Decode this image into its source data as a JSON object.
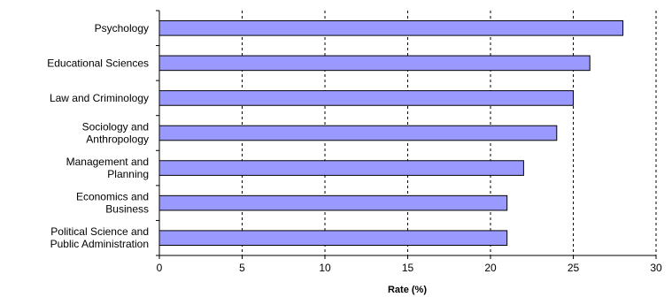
{
  "chart_data": {
    "type": "bar",
    "orientation": "horizontal",
    "title": "",
    "xlabel": "Rate (%)",
    "ylabel": "",
    "xlim": [
      0,
      30
    ],
    "xticks": [
      0,
      5,
      10,
      15,
      20,
      25,
      30
    ],
    "grid": "vertical-dashed",
    "legend": "none",
    "bar_color": "#9999ff",
    "bar_edge_color": "#000000",
    "categories": [
      [
        "Psychology"
      ],
      [
        "Educational Sciences"
      ],
      [
        "Law and Criminology"
      ],
      [
        "Sociology and",
        "Anthropology"
      ],
      [
        "Management and",
        "Planning"
      ],
      [
        "Economics and",
        "Business"
      ],
      [
        "Political Science and",
        "Public Administration"
      ]
    ],
    "values": [
      28,
      26,
      25,
      24,
      22,
      21,
      21
    ]
  }
}
